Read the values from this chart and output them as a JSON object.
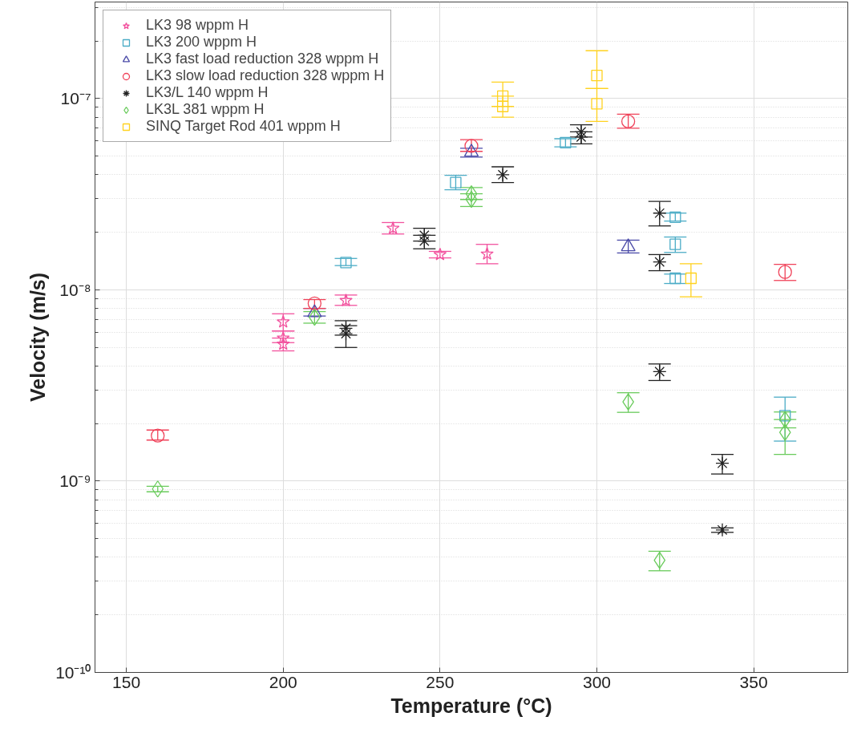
{
  "chart_data": {
    "type": "scatter",
    "xlabel": "Temperature (°C)",
    "ylabel": "Velocity (m/s)",
    "log": "y",
    "grid": true,
    "legend": "top left",
    "xlim": [
      140,
      380
    ],
    "xticks": [
      150,
      200,
      250,
      300,
      350
    ],
    "ylim": [
      1e-10,
      3.2e-07
    ],
    "yticks": [
      {
        "value": 1e-10,
        "label": "10⁻¹⁰"
      },
      {
        "value": 1e-09,
        "label": "10⁻⁹"
      },
      {
        "value": 1e-08,
        "label": "10⁻⁸"
      },
      {
        "value": 1e-07,
        "label": "10⁻⁷"
      }
    ],
    "series": [
      {
        "name": "LK3 98 wppm H",
        "color": "#f2529e",
        "marker": "star",
        "x": [
          200,
          200,
          200,
          220,
          235,
          250,
          265
        ],
        "values": [
          6.8e-09,
          5.6e-09,
          5.2e-09,
          8.8e-09,
          2.1e-08,
          1.53e-08,
          1.54e-08
        ],
        "errors": [
          [
            6.1e-09,
            7.5e-09
          ],
          [
            5.3e-09,
            6.1e-09
          ],
          [
            4.8e-09,
            5.6e-09
          ],
          [
            8.3e-09,
            9.4e-09
          ],
          [
            1.96e-08,
            2.25e-08
          ],
          [
            1.47e-08,
            1.59e-08
          ],
          [
            1.37e-08,
            1.73e-08
          ]
        ]
      },
      {
        "name": "LK3 200 wppm H",
        "color": "#4bacc6",
        "marker": "square",
        "x": [
          220,
          255,
          290,
          325,
          325,
          325,
          360
        ],
        "values": [
          1.39e-08,
          3.64e-08,
          5.89e-08,
          2.4e-08,
          1.73e-08,
          1.15e-08,
          2.2e-09
        ],
        "errors": [
          [
            1.34e-08,
            1.46e-08
          ],
          [
            3.34e-08,
            3.97e-08
          ],
          [
            5.6e-08,
            6.17e-08
          ],
          [
            2.29e-08,
            2.52e-08
          ],
          [
            1.57e-08,
            1.89e-08
          ],
          [
            1.08e-08,
            1.21e-08
          ],
          [
            1.62e-09,
            2.75e-09
          ]
        ]
      },
      {
        "name": "LK3 fast load reduction 328 wppm H",
        "color": "#4b4ba8",
        "marker": "triangle",
        "x": [
          210,
          260,
          310
        ],
        "values": [
          7.6e-09,
          5.25e-08,
          1.68e-08
        ],
        "errors": [
          [
            7.3e-09,
            8e-09
          ],
          [
            4.95e-08,
            5.5e-08
          ],
          [
            1.56e-08,
            1.82e-08
          ]
        ]
      },
      {
        "name": "LK3 slow load reduction 328 wppm H",
        "color": "#f0435a",
        "marker": "circle",
        "x": [
          160,
          210,
          260,
          310,
          360
        ],
        "values": [
          1.73e-09,
          8.5e-09,
          5.66e-08,
          7.6e-08,
          1.24e-08
        ],
        "errors": [
          [
            1.64e-09,
            1.85e-09
          ],
          [
            8e-09,
            8.9e-09
          ],
          [
            5.3e-08,
            6.1e-08
          ],
          [
            7e-08,
            8.3e-08
          ],
          [
            1.12e-08,
            1.36e-08
          ]
        ]
      },
      {
        "name": "LK3/L 140 wppm H",
        "color": "#222222",
        "marker": "cross",
        "x": [
          220,
          220,
          245,
          245,
          270,
          295,
          295,
          320,
          320,
          320,
          340,
          340
        ],
        "values": [
          6.3e-09,
          5.9e-09,
          1.93e-08,
          1.8e-08,
          4e-08,
          6.7e-08,
          6.3e-08,
          2.52e-08,
          1.4e-08,
          3.74e-09,
          1.24e-09,
          5.56e-10
        ],
        "errors": [
          [
            5.8e-09,
            6.9e-09
          ],
          [
            5e-09,
            6.5e-09
          ],
          [
            1.8e-08,
            2.1e-08
          ],
          [
            1.64e-08,
            1.93e-08
          ],
          [
            3.64e-08,
            4.4e-08
          ],
          [
            6.3e-08,
            7.3e-08
          ],
          [
            5.8e-08,
            6.7e-08
          ],
          [
            2.16e-08,
            2.9e-08
          ],
          [
            1.26e-08,
            1.53e-08
          ],
          [
            3.36e-09,
            4.1e-09
          ],
          [
            1.09e-09,
            1.38e-09
          ],
          [
            5.4e-10,
            5.7e-10
          ]
        ]
      },
      {
        "name": "LK3L 381 wppm H",
        "color": "#6acb5c",
        "marker": "diamond",
        "x": [
          160,
          210,
          260,
          260,
          310,
          320,
          360,
          360
        ],
        "values": [
          9.1e-10,
          7.2e-09,
          3.18e-08,
          2.97e-08,
          2.6e-09,
          3.86e-10,
          2.1e-09,
          1.8e-09
        ],
        "errors": [
          [
            8.8e-10,
            9.4e-10
          ],
          [
            6.7e-09,
            7.7e-09
          ],
          [
            2.97e-08,
            3.43e-08
          ],
          [
            2.73e-08,
            3.18e-08
          ],
          [
            2.29e-09,
            2.9e-09
          ],
          [
            3.4e-10,
            4.3e-10
          ],
          [
            1.9e-09,
            2.3e-09
          ],
          [
            1.38e-09,
            2.1e-09
          ]
        ]
      },
      {
        "name": "SINQ Target Rod 401 wppm H",
        "color": "#ffd21f",
        "marker": "square",
        "x": [
          270,
          270,
          300,
          300,
          330
        ],
        "values": [
          1.03e-07,
          9.1e-08,
          1.32e-07,
          9.4e-08,
          1.15e-08
        ],
        "errors": [
          [
            9.1e-08,
            1.22e-07
          ],
          [
            8e-08,
            1.03e-07
          ],
          [
            1.13e-07,
            1.78e-07
          ],
          [
            7.6e-08,
            1.13e-07
          ],
          [
            9.2e-09,
            1.37e-08
          ]
        ]
      }
    ]
  }
}
